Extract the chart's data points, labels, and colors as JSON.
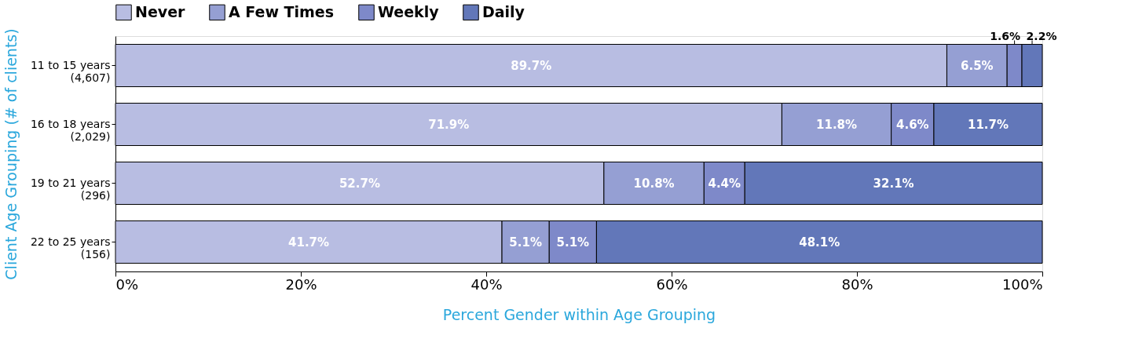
{
  "chart_data": {
    "type": "bar",
    "orientation": "horizontal",
    "stacked": true,
    "categories": [
      "11 to 15 years\n(4,607)",
      "16 to 18 years\n(2,029)",
      "19 to 21 years\n(296)",
      "22 to 25 years\n(156)"
    ],
    "series": [
      {
        "name": "Never",
        "color": "#b8bde2",
        "values": [
          89.7,
          71.9,
          52.7,
          41.7
        ],
        "value_labels": [
          "89.7%",
          "71.9%",
          "52.7%",
          "41.7%"
        ]
      },
      {
        "name": "A Few Times",
        "color": "#959fd3",
        "values": [
          6.5,
          11.8,
          10.8,
          5.1
        ],
        "value_labels": [
          "6.5%",
          "11.8%",
          "10.8%",
          "5.1%"
        ]
      },
      {
        "name": "Weekly",
        "color": "#7e89c9",
        "values": [
          1.6,
          4.6,
          4.4,
          5.1
        ],
        "value_labels": [
          "1.6%",
          "4.6%",
          "4.4%",
          "5.1%"
        ]
      },
      {
        "name": "Daily",
        "color": "#6277b9",
        "values": [
          2.2,
          11.7,
          32.1,
          48.1
        ],
        "value_labels": [
          "2.2%",
          "11.7%",
          "32.1%",
          "48.1%"
        ]
      }
    ],
    "xlim": [
      0,
      100
    ],
    "xticks": [
      {
        "value": 0,
        "label": "0%"
      },
      {
        "value": 20,
        "label": "20%"
      },
      {
        "value": 40,
        "label": "40%"
      },
      {
        "value": 60,
        "label": "60%"
      },
      {
        "value": 80,
        "label": "80%"
      },
      {
        "value": 100,
        "label": "100%"
      }
    ],
    "xlabel": "Percent Gender within Age Grouping",
    "ylabel": "Client Age Grouping (# of clients)",
    "legend": "top",
    "grid": false
  }
}
